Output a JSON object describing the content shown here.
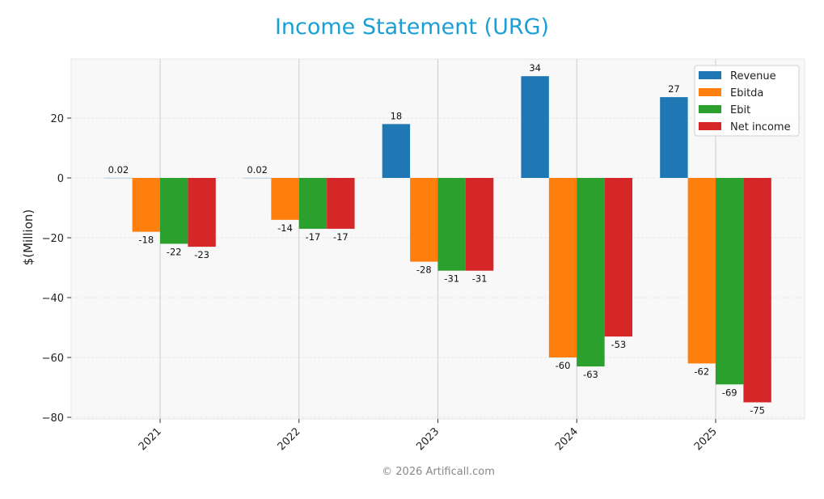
{
  "title": "Income Statement (URG)",
  "footer": "© 2026 Artificall.com",
  "colors": {
    "title": "#1a9fd4",
    "plot_bg": "#f8f8f8",
    "grid": "#e2e2e2",
    "vgrid": "#cccccc"
  },
  "chart_data": {
    "type": "bar",
    "title": "Income Statement (URG)",
    "xlabel": "",
    "ylabel": "$(Million)",
    "ylim": [
      -80,
      40
    ],
    "yticks": [
      20,
      0,
      -20,
      -40,
      -60,
      -80
    ],
    "ytick_labels": [
      "20",
      "0",
      "−20",
      "−40",
      "−60",
      "−80"
    ],
    "categories": [
      "2021",
      "2022",
      "2023",
      "2024",
      "2025"
    ],
    "legend_position": "upper right",
    "grid": true,
    "series": [
      {
        "name": "Revenue",
        "color": "#1f77b4",
        "values": [
          0.02,
          0.02,
          18,
          34,
          27
        ],
        "labels": [
          "0.02",
          "0.02",
          "18",
          "34",
          "27"
        ]
      },
      {
        "name": "Ebitda",
        "color": "#ff7f0e",
        "values": [
          -18,
          -14,
          -28,
          -60,
          -62
        ],
        "labels": [
          "-18",
          "-14",
          "-28",
          "-60",
          "-62"
        ]
      },
      {
        "name": "Ebit",
        "color": "#2ca02c",
        "values": [
          -22,
          -17,
          -31,
          -63,
          -69
        ],
        "labels": [
          "-22",
          "-17",
          "-31",
          "-63",
          "-69"
        ]
      },
      {
        "name": "Net income",
        "color": "#d62728",
        "values": [
          -23,
          -17,
          -31,
          -53,
          -75
        ],
        "labels": [
          "-23",
          "-17",
          "-31",
          "-53",
          "-75"
        ]
      }
    ]
  }
}
